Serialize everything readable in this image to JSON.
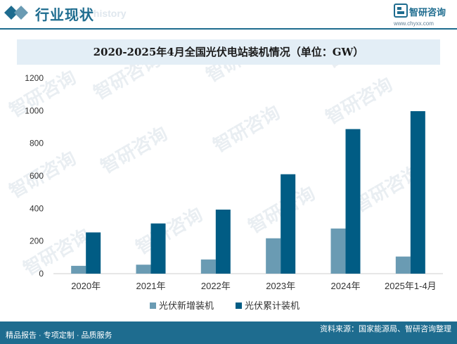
{
  "header": {
    "title": "行业现状",
    "subtitle_watermark": "ent history",
    "logo_name": "智研咨询",
    "logo_url": "www.chyxx.com"
  },
  "watermark": {
    "text": "智研咨询",
    "sub": "INTELLIGENCE RESEARCH GROUP"
  },
  "chart_title": "2020-2025年4月全国光伏电站装机情况（单位：GW）",
  "chart_data": {
    "type": "bar",
    "title": "2020-2025年4月全国光伏电站装机情况（单位：GW）",
    "categories": [
      "2020年",
      "2021年",
      "2022年",
      "2023年",
      "2024年",
      "2025年1-4月"
    ],
    "series": [
      {
        "name": "光伏新增装机",
        "values": [
          48,
          55,
          87,
          217,
          277,
          105
        ],
        "color": "#6a9bb3"
      },
      {
        "name": "光伏累计装机",
        "values": [
          253,
          308,
          393,
          610,
          887,
          997
        ],
        "color": "#015c84"
      }
    ],
    "ylim": [
      0,
      1200
    ],
    "yticks": [
      0,
      200,
      400,
      600,
      800,
      1000,
      1200
    ],
    "grid": false,
    "legend_position": "bottom"
  },
  "footer": {
    "slogan": "精品报告 · 专项定制 · 品质服务",
    "source": "资料来源：国家能源局、智研咨询整理"
  }
}
